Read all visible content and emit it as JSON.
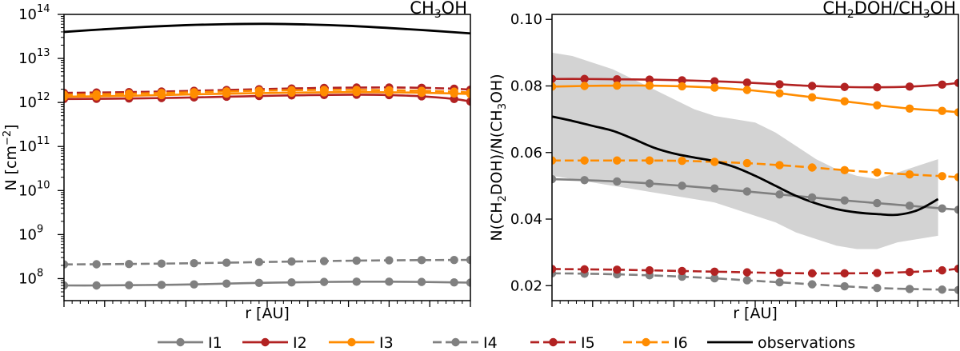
{
  "chart_data": [
    {
      "type": "line",
      "title": "CH₃OH",
      "xlabel": "r [AU]",
      "ylabel": "N [cm⁻²]",
      "yscale": "log",
      "ylim_log10": [
        7.5,
        14.0
      ],
      "xlim": [
        0,
        10
      ],
      "y_ticks": [
        {
          "exp": 8,
          "label": "10",
          "sup": "8"
        },
        {
          "exp": 9,
          "label": "10",
          "sup": "9"
        },
        {
          "exp": 10,
          "label": "10",
          "sup": "10"
        },
        {
          "exp": 11,
          "label": "10",
          "sup": "11"
        },
        {
          "exp": 12,
          "label": "10",
          "sup": "12"
        },
        {
          "exp": 13,
          "label": "10",
          "sup": "13"
        },
        {
          "exp": 14,
          "label": "10",
          "sup": "14"
        }
      ],
      "series": [
        {
          "name": "I1",
          "color": "#808080",
          "dashed": false,
          "markers": true,
          "x": [
            0,
            0.8,
            1.6,
            2.4,
            3.2,
            4.0,
            4.8,
            5.6,
            6.4,
            7.2,
            8.0,
            8.8,
            9.6,
            10
          ],
          "y": [
            70000000.0,
            70000000.0,
            71000000.0,
            72000000.0,
            74000000.0,
            77000000.0,
            80000000.0,
            82000000.0,
            84000000.0,
            85000000.0,
            85000000.0,
            84000000.0,
            82000000.0,
            81000000.0
          ]
        },
        {
          "name": "I2",
          "color": "#b22222",
          "dashed": false,
          "markers": true,
          "x": [
            0,
            0.8,
            1.6,
            2.4,
            3.2,
            4.0,
            4.8,
            5.6,
            6.4,
            7.2,
            8.0,
            8.8,
            9.6,
            10
          ],
          "y": [
            1200000000000.0,
            1210000000000.0,
            1230000000000.0,
            1260000000000.0,
            1300000000000.0,
            1350000000000.0,
            1400000000000.0,
            1450000000000.0,
            1480000000000.0,
            1500000000000.0,
            1470000000000.0,
            1380000000000.0,
            1200000000000.0,
            1050000000000.0
          ]
        },
        {
          "name": "I3",
          "color": "#ff8c00",
          "dashed": false,
          "markers": true,
          "x": [
            0,
            0.8,
            1.6,
            2.4,
            3.2,
            4.0,
            4.8,
            5.6,
            6.4,
            7.2,
            8.0,
            8.8,
            9.6,
            10
          ],
          "y": [
            1350000000000.0,
            1380000000000.0,
            1420000000000.0,
            1470000000000.0,
            1530000000000.0,
            1580000000000.0,
            1630000000000.0,
            1670000000000.0,
            1700000000000.0,
            1710000000000.0,
            1700000000000.0,
            1660000000000.0,
            1600000000000.0,
            1550000000000.0
          ]
        },
        {
          "name": "I4",
          "color": "#808080",
          "dashed": true,
          "markers": true,
          "x": [
            0,
            0.8,
            1.6,
            2.4,
            3.2,
            4.0,
            4.8,
            5.6,
            6.4,
            7.2,
            8.0,
            8.8,
            9.6,
            10
          ],
          "y": [
            210000000.0,
            212000000.0,
            215000000.0,
            219000000.0,
            224000000.0,
            230000000.0,
            237000000.0,
            244000000.0,
            250000000.0,
            256000000.0,
            260000000.0,
            263000000.0,
            265000000.0,
            266000000.0
          ]
        },
        {
          "name": "I5",
          "color": "#b22222",
          "dashed": true,
          "markers": true,
          "x": [
            0,
            0.8,
            1.6,
            2.4,
            3.2,
            4.0,
            4.8,
            5.6,
            6.4,
            7.2,
            8.0,
            8.8,
            9.6,
            10
          ],
          "y": [
            1650000000000.0,
            1680000000000.0,
            1720000000000.0,
            1770000000000.0,
            1840000000000.0,
            1920000000000.0,
            2000000000000.0,
            2080000000000.0,
            2140000000000.0,
            2180000000000.0,
            2190000000000.0,
            2150000000000.0,
            2050000000000.0,
            1950000000000.0
          ]
        },
        {
          "name": "I6",
          "color": "#ff8c00",
          "dashed": true,
          "markers": true,
          "x": [
            0,
            0.8,
            1.6,
            2.4,
            3.2,
            4.0,
            4.8,
            5.6,
            6.4,
            7.2,
            8.0,
            8.8,
            9.6,
            10
          ],
          "y": [
            1500000000000.0,
            1530000000000.0,
            1580000000000.0,
            1640000000000.0,
            1710000000000.0,
            1780000000000.0,
            1850000000000.0,
            1900000000000.0,
            1930000000000.0,
            1930000000000.0,
            1900000000000.0,
            1840000000000.0,
            1760000000000.0,
            1680000000000.0
          ]
        },
        {
          "name": "observations",
          "color": "#000000",
          "dashed": false,
          "markers": false,
          "x": [
            0,
            1,
            2,
            3,
            4,
            5,
            6,
            7,
            8,
            9,
            10
          ],
          "y": [
            40000000000000.0,
            46000000000000.0,
            52000000000000.0,
            57000000000000.0,
            60000000000000.0,
            61000000000000.0,
            59000000000000.0,
            55000000000000.0,
            49000000000000.0,
            43000000000000.0,
            37000000000000.0
          ]
        }
      ]
    },
    {
      "type": "line",
      "title": "CH₂DOH/CH₃OH",
      "xlabel": "r [AU]",
      "ylabel": "N(CH₂DOH)/N(CH₃OH)",
      "ylim": [
        0.0155,
        0.1015
      ],
      "xlim": [
        0,
        10
      ],
      "y_ticks": [
        0.02,
        0.04,
        0.06,
        0.08,
        0.1
      ],
      "y_tick_labels": [
        "0.02",
        "0.04",
        "0.06",
        "0.08",
        "0.10"
      ],
      "band": {
        "name": "observations uncertainty",
        "color": "#d3d3d3",
        "x": [
          0,
          0.5,
          1,
          1.5,
          2,
          2.5,
          3,
          3.5,
          4,
          4.5,
          5,
          5.5,
          6,
          6.5,
          7,
          7.5,
          8,
          8.5,
          9,
          9.5
        ],
        "upper": [
          0.09,
          0.089,
          0.087,
          0.085,
          0.082,
          0.079,
          0.076,
          0.073,
          0.071,
          0.07,
          0.069,
          0.066,
          0.062,
          0.058,
          0.055,
          0.053,
          0.052,
          0.054,
          0.056,
          0.058
        ],
        "lower": [
          0.053,
          0.052,
          0.051,
          0.05,
          0.049,
          0.048,
          0.047,
          0.046,
          0.045,
          0.043,
          0.041,
          0.039,
          0.036,
          0.034,
          0.032,
          0.031,
          0.031,
          0.033,
          0.034,
          0.035
        ]
      },
      "series": [
        {
          "name": "I1",
          "color": "#808080",
          "dashed": false,
          "markers": true,
          "x": [
            0,
            0.8,
            1.6,
            2.4,
            3.2,
            4.0,
            4.8,
            5.6,
            6.4,
            7.2,
            8.0,
            8.8,
            9.6,
            10
          ],
          "y": [
            0.052,
            0.0517,
            0.0513,
            0.0507,
            0.05,
            0.0492,
            0.0483,
            0.0474,
            0.0465,
            0.0456,
            0.0448,
            0.044,
            0.0432,
            0.0428
          ]
        },
        {
          "name": "I2",
          "color": "#b22222",
          "dashed": false,
          "markers": true,
          "x": [
            0,
            0.8,
            1.6,
            2.4,
            3.2,
            4.0,
            4.8,
            5.6,
            6.4,
            7.2,
            8.0,
            8.8,
            9.6,
            10
          ],
          "y": [
            0.0821,
            0.0821,
            0.082,
            0.0819,
            0.0817,
            0.0814,
            0.081,
            0.0805,
            0.08,
            0.0797,
            0.0796,
            0.0798,
            0.0804,
            0.0809
          ]
        },
        {
          "name": "I3",
          "color": "#ff8c00",
          "dashed": false,
          "markers": true,
          "x": [
            0,
            0.8,
            1.6,
            2.4,
            3.2,
            4.0,
            4.8,
            5.6,
            6.4,
            7.2,
            8.0,
            8.8,
            9.6,
            10
          ],
          "y": [
            0.0798,
            0.08,
            0.0801,
            0.0801,
            0.0799,
            0.0795,
            0.0788,
            0.0778,
            0.0766,
            0.0754,
            0.0742,
            0.0732,
            0.0725,
            0.0721
          ]
        },
        {
          "name": "I4",
          "color": "#808080",
          "dashed": true,
          "markers": true,
          "x": [
            0,
            0.8,
            1.6,
            2.4,
            3.2,
            4.0,
            4.8,
            5.6,
            6.4,
            7.2,
            8.0,
            8.8,
            9.6,
            10
          ],
          "y": [
            0.0237,
            0.0236,
            0.0234,
            0.0231,
            0.0227,
            0.0222,
            0.0216,
            0.021,
            0.0204,
            0.0198,
            0.0193,
            0.019,
            0.0188,
            0.0187
          ]
        },
        {
          "name": "I5",
          "color": "#b22222",
          "dashed": true,
          "markers": true,
          "x": [
            0,
            0.8,
            1.6,
            2.4,
            3.2,
            4.0,
            4.8,
            5.6,
            6.4,
            7.2,
            8.0,
            8.8,
            9.6,
            10
          ],
          "y": [
            0.025,
            0.0249,
            0.0248,
            0.0246,
            0.0244,
            0.0242,
            0.024,
            0.0238,
            0.0237,
            0.0237,
            0.0238,
            0.0241,
            0.0246,
            0.0251
          ]
        },
        {
          "name": "I6",
          "color": "#ff8c00",
          "dashed": true,
          "markers": true,
          "x": [
            0,
            0.8,
            1.6,
            2.4,
            3.2,
            4.0,
            4.8,
            5.6,
            6.4,
            7.2,
            8.0,
            8.8,
            9.6,
            10
          ],
          "y": [
            0.0576,
            0.0576,
            0.0576,
            0.0576,
            0.0575,
            0.0572,
            0.0568,
            0.0562,
            0.0555,
            0.0547,
            0.054,
            0.0534,
            0.0529,
            0.0526
          ]
        },
        {
          "name": "observations",
          "color": "#000000",
          "dashed": false,
          "markers": false,
          "x": [
            0,
            0.5,
            1,
            1.5,
            2,
            2.5,
            3,
            3.5,
            4,
            4.5,
            5,
            5.5,
            6,
            6.5,
            7,
            7.5,
            8,
            8.5,
            9,
            9.5
          ],
          "y": [
            0.0708,
            0.0695,
            0.068,
            0.0665,
            0.0641,
            0.0615,
            0.0597,
            0.0585,
            0.0574,
            0.0556,
            0.053,
            0.05,
            0.047,
            0.0447,
            0.043,
            0.042,
            0.0415,
            0.0413,
            0.0427,
            0.046
          ]
        }
      ]
    }
  ],
  "legend": {
    "placement": "bottom",
    "items": [
      {
        "label": "I1",
        "color": "#808080",
        "dashed": false,
        "marker": true
      },
      {
        "label": "I2",
        "color": "#b22222",
        "dashed": false,
        "marker": true
      },
      {
        "label": "I3",
        "color": "#ff8c00",
        "dashed": false,
        "marker": true
      },
      {
        "label": "I4",
        "color": "#808080",
        "dashed": true,
        "marker": true
      },
      {
        "label": "I5",
        "color": "#b22222",
        "dashed": true,
        "marker": true
      },
      {
        "label": "I6",
        "color": "#ff8c00",
        "dashed": true,
        "marker": true
      },
      {
        "label": "observations",
        "color": "#000000",
        "dashed": false,
        "marker": false
      }
    ]
  }
}
